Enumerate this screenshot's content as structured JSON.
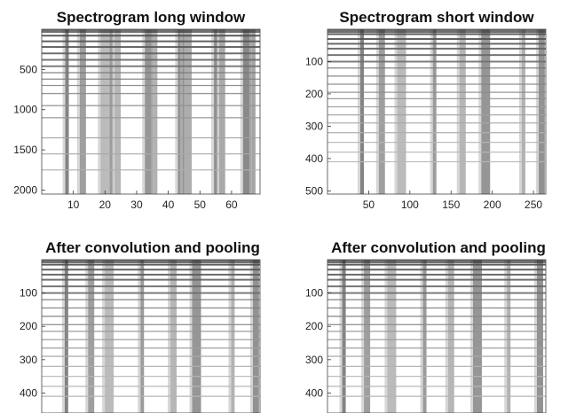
{
  "chart_data": [
    {
      "type": "heatmap",
      "title": "Spectrogram long window",
      "xlabel": "",
      "ylabel": "",
      "xlim": [
        0,
        69
      ],
      "ylim": [
        0,
        2050
      ],
      "x_ticks": [
        10,
        20,
        30,
        40,
        50,
        60
      ],
      "y_ticks": [
        500,
        1000,
        1500,
        2000
      ],
      "column_bands": [
        8,
        13,
        20,
        22,
        24,
        34,
        36,
        44,
        46,
        55,
        57,
        65,
        67
      ],
      "harmonic_rows": [
        80,
        150,
        220,
        300,
        380,
        460,
        540,
        620,
        700,
        800,
        950,
        1100,
        1350,
        1550,
        1750
      ],
      "colormap": "gray-inverted",
      "grid": false
    },
    {
      "type": "heatmap",
      "title": "Spectrogram short window",
      "xlabel": "",
      "ylabel": "",
      "xlim": [
        0,
        265
      ],
      "ylim": [
        0,
        510
      ],
      "x_ticks": [
        50,
        100,
        150,
        200,
        250
      ],
      "y_ticks": [
        100,
        200,
        300,
        400,
        500
      ],
      "column_bands": [
        42,
        66,
        90,
        130,
        164,
        192,
        238,
        260
      ],
      "harmonic_rows": [
        15,
        30,
        45,
        60,
        80,
        100,
        120,
        145,
        170,
        195,
        215,
        240,
        265,
        290,
        320,
        350,
        380,
        410
      ],
      "colormap": "gray-inverted",
      "grid": false
    },
    {
      "type": "heatmap",
      "title": "After convolution and pooling",
      "xlabel": "",
      "ylabel": "",
      "xlim": [
        0,
        265
      ],
      "ylim": [
        0,
        460
      ],
      "x_ticks": [],
      "y_ticks": [
        100,
        200,
        300,
        400
      ],
      "column_bands": [
        30,
        60,
        82,
        122,
        160,
        188,
        232,
        260
      ],
      "harmonic_rows": [
        15,
        30,
        45,
        60,
        80,
        100,
        120,
        145,
        170,
        195,
        215,
        240,
        265,
        290,
        320,
        350,
        380,
        410
      ],
      "colormap": "gray-inverted",
      "grid": false
    },
    {
      "type": "heatmap",
      "title": "After convolution and pooling",
      "xlabel": "",
      "ylabel": "",
      "xlim": [
        0,
        265
      ],
      "ylim": [
        0,
        460
      ],
      "x_ticks": [],
      "y_ticks": [
        100,
        200,
        300,
        400
      ],
      "column_bands": [
        20,
        48,
        78,
        118,
        150,
        182,
        220,
        258
      ],
      "harmonic_rows": [
        15,
        30,
        45,
        60,
        80,
        100,
        120,
        145,
        170,
        195,
        215,
        240,
        265,
        290,
        320,
        350,
        380,
        410
      ],
      "colormap": "gray-inverted",
      "grid": false
    }
  ]
}
